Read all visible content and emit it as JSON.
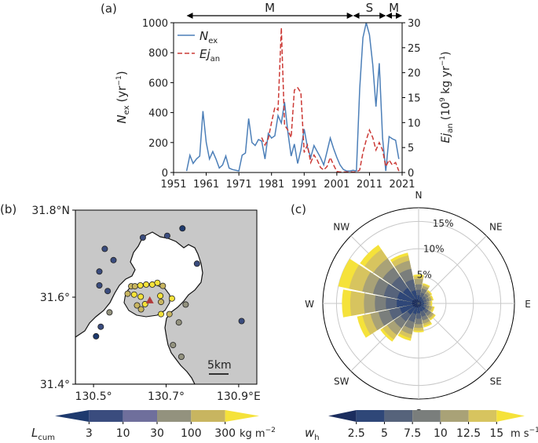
{
  "figure": {
    "panel_labels": [
      "(a)",
      "(b)",
      "(c)"
    ]
  },
  "chart_data": [
    {
      "panel": "(a)",
      "type": "line",
      "xlim": [
        1951,
        2021
      ],
      "x_ticks": [
        1951,
        1961,
        1971,
        1981,
        1991,
        2001,
        2011,
        2021
      ],
      "left_axis": {
        "label_main": "N",
        "label_sub": "ex",
        "label_unit": "(yr",
        "label_exp": "−1",
        "label_close": ")",
        "ylim": [
          0,
          1000
        ],
        "ticks": [
          0,
          200,
          400,
          600,
          800,
          1000
        ]
      },
      "right_axis": {
        "label_main": "Ej",
        "label_sub": "an",
        "label_unit": "(10",
        "label_pow": "9",
        "label_unit2": " kg yr",
        "label_exp": "−1",
        "label_close": ")",
        "ylim": [
          0,
          30
        ],
        "ticks": [
          0,
          5,
          10,
          15,
          20,
          25,
          30
        ]
      },
      "periods": [
        {
          "label": "M",
          "start": 1955,
          "end": 2006
        },
        {
          "label": "S",
          "start": 2006,
          "end": 2016
        },
        {
          "label": "M",
          "start": 2016,
          "end": 2021
        }
      ],
      "legend": [
        {
          "main": "N",
          "sub": "ex",
          "style": "solid",
          "color": "#4c7fb8"
        },
        {
          "main": "Ej",
          "sub": "an",
          "style": "dashed",
          "color": "#cc3a36"
        }
      ],
      "series": [
        {
          "name": "N_ex",
          "axis": "left",
          "color": "#4c7fb8",
          "x": [
            1955,
            1956,
            1957,
            1958,
            1959,
            1960,
            1961,
            1962,
            1963,
            1964,
            1965,
            1966,
            1967,
            1968,
            1969,
            1970,
            1971,
            1972,
            1973,
            1974,
            1975,
            1976,
            1977,
            1978,
            1979,
            1980,
            1981,
            1982,
            1983,
            1984,
            1985,
            1986,
            1987,
            1988,
            1989,
            1990,
            1991,
            1992,
            1993,
            1994,
            1995,
            1996,
            1997,
            1998,
            1999,
            2000,
            2001,
            2002,
            2003,
            2004,
            2005,
            2006,
            2007,
            2008,
            2009,
            2010,
            2011,
            2012,
            2013,
            2014,
            2015,
            2016,
            2017,
            2018,
            2019,
            2020
          ],
          "values": [
            10,
            115,
            60,
            90,
            110,
            410,
            200,
            90,
            140,
            90,
            30,
            50,
            110,
            30,
            20,
            15,
            10,
            115,
            130,
            360,
            200,
            180,
            220,
            210,
            90,
            260,
            230,
            245,
            380,
            330,
            470,
            270,
            110,
            190,
            60,
            150,
            290,
            170,
            100,
            180,
            140,
            100,
            50,
            140,
            230,
            160,
            100,
            50,
            20,
            10,
            10,
            15,
            10,
            560,
            900,
            1000,
            920,
            720,
            440,
            730,
            230,
            10,
            240,
            225,
            215,
            90
          ]
        },
        {
          "name": "Ej_an",
          "axis": "right",
          "color": "#cc3a36",
          "x": [
            1978,
            1979,
            1980,
            1981,
            1982,
            1983,
            1984,
            1985,
            1986,
            1987,
            1988,
            1989,
            1990,
            1991,
            1992,
            1993,
            1994,
            1995,
            1996,
            1997,
            1998,
            1999,
            2000,
            2001,
            2002,
            2003,
            2004,
            2005,
            2006,
            2007,
            2008,
            2009,
            2010,
            2011,
            2012,
            2013,
            2014,
            2015,
            2016,
            2017,
            2018,
            2019,
            2020
          ],
          "values": [
            7,
            5.5,
            6.8,
            10,
            13,
            12.5,
            29,
            9.5,
            8.5,
            7,
            16.5,
            17,
            16,
            4,
            5.5,
            2,
            3.5,
            2.5,
            1,
            0.5,
            1.2,
            3,
            1.5,
            0.2,
            0.1,
            0.1,
            0.1,
            0.1,
            0.1,
            0.1,
            0.5,
            4,
            6.5,
            8.5,
            7,
            4.5,
            6,
            4.5,
            1.2,
            2.5,
            1.5,
            2,
            0.3
          ]
        }
      ]
    },
    {
      "panel": "(b)",
      "type": "scatter",
      "xlim": [
        130.45,
        130.95
      ],
      "ylim": [
        31.4,
        31.8
      ],
      "x_ticks": [
        130.5,
        130.7,
        130.9
      ],
      "x_tick_labels": [
        "130.5°",
        "130.7°",
        "130.9°E"
      ],
      "y_ticks": [
        31.4,
        31.6,
        31.8
      ],
      "y_tick_labels": [
        "31.4°",
        "31.6°",
        "31.8°N"
      ],
      "scalebar_label": "5km",
      "vent": {
        "lon": 130.655,
        "lat": 31.593
      },
      "colorbar": {
        "label_main": "L",
        "label_sub": "cum",
        "levels": [
          3,
          10,
          30,
          100,
          300
        ],
        "unit": "kg m",
        "unit_exp": "−2",
        "colors": [
          "#1e3a6e",
          "#3a4c7e",
          "#6f6f9c",
          "#93927e",
          "#c8b560",
          "#f5e23a"
        ]
      },
      "points": [
        {
          "lon": 130.745,
          "lat": 31.758,
          "value": 2
        },
        {
          "lon": 130.703,
          "lat": 31.741,
          "value": 3.5
        },
        {
          "lon": 130.636,
          "lat": 31.737,
          "value": 4
        },
        {
          "lon": 130.531,
          "lat": 31.711,
          "value": 5
        },
        {
          "lon": 130.555,
          "lat": 31.685,
          "value": 6
        },
        {
          "lon": 130.785,
          "lat": 31.677,
          "value": 6
        },
        {
          "lon": 130.516,
          "lat": 31.659,
          "value": 6
        },
        {
          "lon": 130.516,
          "lat": 31.627,
          "value": 6
        },
        {
          "lon": 130.539,
          "lat": 31.614,
          "value": 6
        },
        {
          "lon": 130.908,
          "lat": 31.545,
          "value": 6
        },
        {
          "lon": 130.507,
          "lat": 31.51,
          "value": 2.5
        },
        {
          "lon": 130.52,
          "lat": 31.532,
          "value": 8
        },
        {
          "lon": 130.544,
          "lat": 31.565,
          "value": 80
        },
        {
          "lon": 130.754,
          "lat": 31.583,
          "value": 90
        },
        {
          "lon": 130.709,
          "lat": 31.561,
          "value": 100
        },
        {
          "lon": 130.735,
          "lat": 31.542,
          "value": 90
        },
        {
          "lon": 130.719,
          "lat": 31.49,
          "value": 80
        },
        {
          "lon": 130.742,
          "lat": 31.463,
          "value": 60
        },
        {
          "lon": 130.594,
          "lat": 31.608,
          "value": 100
        },
        {
          "lon": 130.604,
          "lat": 31.625,
          "value": 200
        },
        {
          "lon": 130.614,
          "lat": 31.625,
          "value": 250
        },
        {
          "lon": 130.629,
          "lat": 31.627,
          "value": 300
        },
        {
          "lon": 130.645,
          "lat": 31.629,
          "value": 300
        },
        {
          "lon": 130.662,
          "lat": 31.629,
          "value": 350
        },
        {
          "lon": 130.676,
          "lat": 31.633,
          "value": 300
        },
        {
          "lon": 130.691,
          "lat": 31.626,
          "value": 250
        },
        {
          "lon": 130.612,
          "lat": 31.606,
          "value": 400
        },
        {
          "lon": 130.63,
          "lat": 31.601,
          "value": 500
        },
        {
          "lon": 130.62,
          "lat": 31.581,
          "value": 150
        },
        {
          "lon": 130.631,
          "lat": 31.572,
          "value": 200
        },
        {
          "lon": 130.642,
          "lat": 31.584,
          "value": 500
        },
        {
          "lon": 130.686,
          "lat": 31.589,
          "value": 200
        },
        {
          "lon": 130.716,
          "lat": 31.597,
          "value": 500
        },
        {
          "lon": 130.686,
          "lat": 31.561,
          "value": 500
        },
        {
          "lon": 130.684,
          "lat": 31.603,
          "value": 300
        }
      ]
    },
    {
      "panel": "(c)",
      "type": "polar-bar",
      "directions": [
        "N",
        "NE",
        "E",
        "SE",
        "S",
        "SW",
        "W",
        "NW"
      ],
      "radial_ticks": [
        "5%",
        "10%",
        "15%"
      ],
      "radial_values": [
        5,
        10,
        15
      ],
      "rmax": 17.5,
      "colorbar": {
        "label_main": "w",
        "label_sub": "h",
        "levels": [
          2.5,
          5,
          7.5,
          10,
          12.5,
          15
        ],
        "unit": "m s",
        "unit_exp": "−1",
        "colors": [
          "#1b2d5e",
          "#2f4778",
          "#56637b",
          "#7a7e7c",
          "#a9a277",
          "#d7c45f",
          "#f5e23a"
        ]
      },
      "sectors": [
        {
          "direction_deg": 270,
          "cumulative_pct": [
            1.2,
            4.0,
            6.0,
            8.0,
            10.0,
            12.5,
            14.0
          ]
        },
        {
          "direction_deg": 292.5,
          "cumulative_pct": [
            1.2,
            4.0,
            6.5,
            8.5,
            10.5,
            13.0,
            15.0
          ]
        },
        {
          "direction_deg": 315,
          "cumulative_pct": [
            1.0,
            3.5,
            6.0,
            8.0,
            10.0,
            12.0,
            13.0
          ]
        },
        {
          "direction_deg": 337.5,
          "cumulative_pct": [
            0.8,
            2.5,
            4.5,
            6.5,
            8.0,
            9.0,
            9.5
          ]
        },
        {
          "direction_deg": 0,
          "cumulative_pct": [
            0.6,
            1.5,
            2.5,
            3.5,
            4.5,
            5.0,
            5.3
          ]
        },
        {
          "direction_deg": 22.5,
          "cumulative_pct": [
            0.5,
            1.2,
            2.0,
            2.8,
            3.3,
            3.6,
            3.8
          ]
        },
        {
          "direction_deg": 45,
          "cumulative_pct": [
            0.5,
            1.0,
            1.6,
            2.2,
            2.6,
            2.8,
            3.0
          ]
        },
        {
          "direction_deg": 67.5,
          "cumulative_pct": [
            0.5,
            1.0,
            1.5,
            2.0,
            2.4,
            2.6,
            2.8
          ]
        },
        {
          "direction_deg": 90,
          "cumulative_pct": [
            0.5,
            1.0,
            1.4,
            1.8,
            2.1,
            2.3,
            2.5
          ]
        },
        {
          "direction_deg": 112.5,
          "cumulative_pct": [
            0.5,
            1.0,
            1.5,
            2.0,
            2.5,
            2.8,
            3.0
          ]
        },
        {
          "direction_deg": 135,
          "cumulative_pct": [
            0.6,
            1.5,
            2.2,
            2.8,
            3.3,
            3.6,
            3.8
          ]
        },
        {
          "direction_deg": 157.5,
          "cumulative_pct": [
            0.6,
            1.5,
            2.5,
            3.2,
            3.8,
            4.2,
            4.5
          ]
        },
        {
          "direction_deg": 180,
          "cumulative_pct": [
            0.7,
            1.8,
            2.8,
            3.8,
            4.5,
            5.0,
            5.3
          ]
        },
        {
          "direction_deg": 202.5,
          "cumulative_pct": [
            0.8,
            2.0,
            3.5,
            4.8,
            5.8,
            6.5,
            7.0
          ]
        },
        {
          "direction_deg": 225,
          "cumulative_pct": [
            0.9,
            2.5,
            4.0,
            5.5,
            7.0,
            8.0,
            8.5
          ]
        },
        {
          "direction_deg": 247.5,
          "cumulative_pct": [
            1.1,
            3.5,
            5.5,
            7.5,
            9.0,
            10.5,
            11.5
          ]
        }
      ]
    }
  ]
}
